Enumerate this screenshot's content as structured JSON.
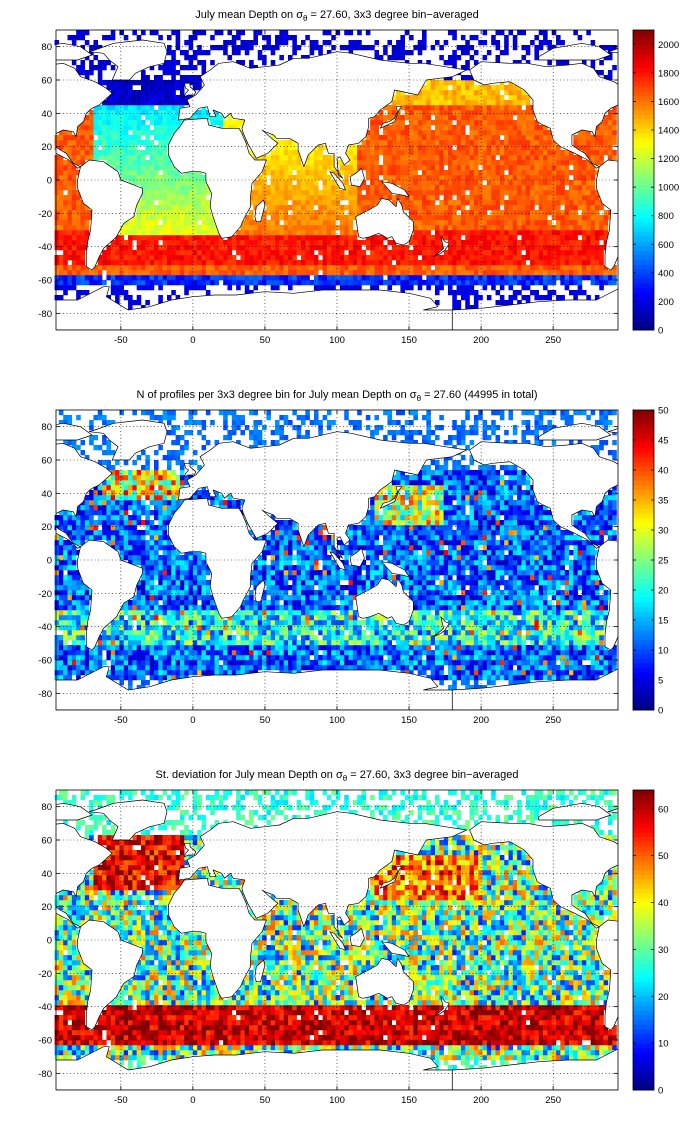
{
  "chart_data": [
    {
      "type": "heatmap",
      "title": {
        "pre": "July mean Depth on ",
        "sym": "σ",
        "sub": "θ",
        "post": " = 27.60, 3x3 degree bin−averaged"
      },
      "x_ticks": [
        "-50",
        "0",
        "50",
        "100",
        "150",
        "200",
        "250"
      ],
      "y_ticks": [
        "80",
        "60",
        "40",
        "20",
        "0",
        "-20",
        "-40",
        "-60",
        "-80"
      ],
      "xlim": [
        -95,
        295
      ],
      "ylim": [
        -90,
        90
      ],
      "grid": true,
      "colorbar_ticks": [
        "0",
        "200",
        "400",
        "600",
        "800",
        "1000",
        "1200",
        "1400",
        "1600",
        "1800",
        "2000"
      ],
      "colorbar_range": [
        0,
        2100
      ]
    },
    {
      "type": "heatmap",
      "title": {
        "pre": "N of profiles per 3x3 degree bin for July mean Depth on ",
        "sym": "σ",
        "sub": "θ",
        "post": " = 27.60 (44995 in total)"
      },
      "x_ticks": [
        "-50",
        "0",
        "50",
        "100",
        "150",
        "200",
        "250"
      ],
      "y_ticks": [
        "80",
        "60",
        "40",
        "20",
        "0",
        "-20",
        "-40",
        "-60",
        "-80"
      ],
      "xlim": [
        -95,
        295
      ],
      "ylim": [
        -90,
        90
      ],
      "grid": true,
      "colorbar_ticks": [
        "0",
        "5",
        "10",
        "15",
        "20",
        "25",
        "30",
        "35",
        "40",
        "45",
        "50"
      ],
      "colorbar_range": [
        0,
        50
      ]
    },
    {
      "type": "heatmap",
      "title": {
        "pre": "St. deviation for July mean Depth on ",
        "sym": "σ",
        "sub": "θ",
        "post": " = 27.60, 3x3 degree bin−averaged"
      },
      "x_ticks": [
        "-50",
        "0",
        "50",
        "100",
        "150",
        "200",
        "250"
      ],
      "y_ticks": [
        "80",
        "60",
        "40",
        "20",
        "0",
        "-20",
        "-40",
        "-60",
        "-80"
      ],
      "xlim": [
        -95,
        295
      ],
      "ylim": [
        -90,
        90
      ],
      "grid": true,
      "colorbar_ticks": [
        "0",
        "10",
        "20",
        "30",
        "40",
        "50",
        "60"
      ],
      "colorbar_range": [
        0,
        64
      ]
    }
  ],
  "colors": {
    "colormap": "jet",
    "land": "#ffffff",
    "coastline": "#000000"
  }
}
